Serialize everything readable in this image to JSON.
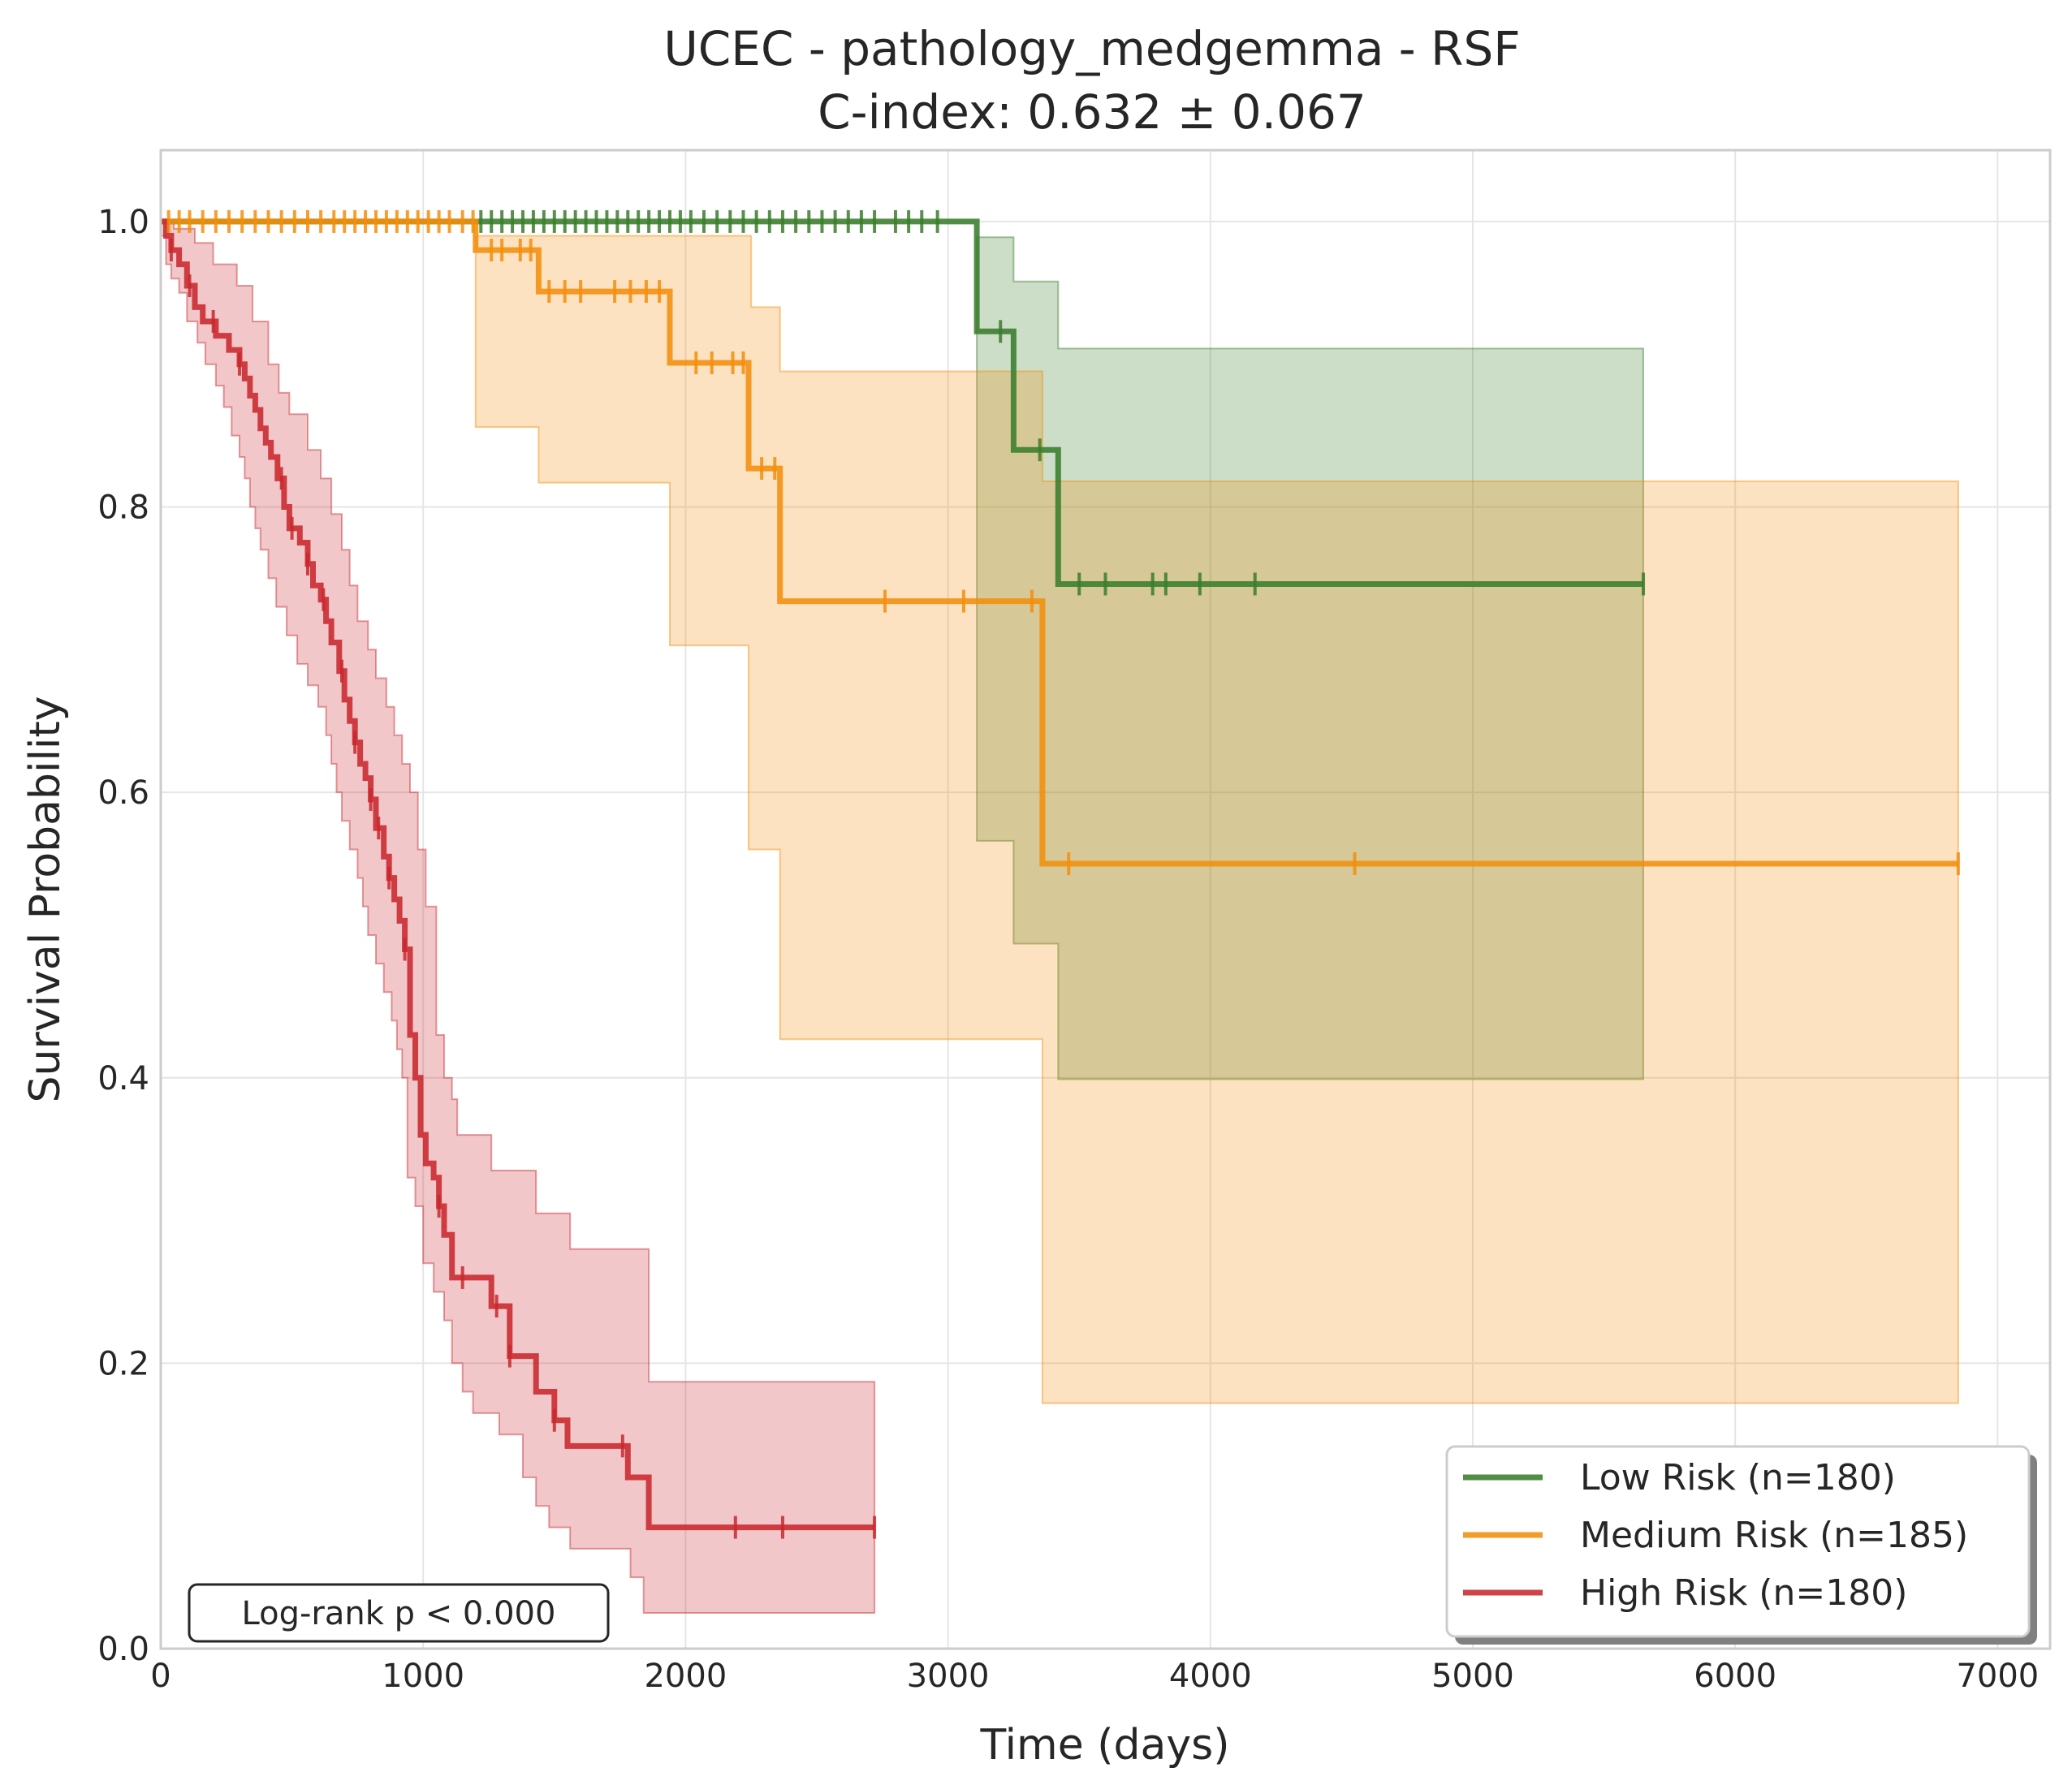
{
  "chart_data": {
    "type": "line",
    "subtype": "kaplan-meier",
    "title": "UCEC - pathology_medgemma - RSF",
    "subtitle": "C-index: 0.632 ± 0.067",
    "xlabel": "Time (days)",
    "ylabel": "Survival Probability",
    "xlim": [
      0,
      7200
    ],
    "ylim": [
      0.0,
      1.05
    ],
    "x_ticks": [
      0,
      1000,
      2000,
      3000,
      4000,
      5000,
      6000,
      7000
    ],
    "x_tick_labels": [
      "0",
      "1000",
      "2000",
      "3000",
      "4000",
      "5000",
      "6000",
      "7000"
    ],
    "y_ticks": [
      0.0,
      0.2,
      0.4,
      0.6,
      0.8,
      1.0
    ],
    "y_tick_labels": [
      "0.0",
      "0.2",
      "0.4",
      "0.6",
      "0.8",
      "1.0"
    ],
    "grid": true,
    "legend_position": "bottom-right",
    "annotation": "Log-rank p < 0.000",
    "series": [
      {
        "name": "Low Risk (n=180)",
        "color": "#3a7d2c",
        "steps": [
          [
            0,
            1.0
          ],
          [
            3110,
            0.923
          ],
          [
            3250,
            0.84
          ],
          [
            3420,
            0.746
          ],
          [
            5650,
            0.746
          ]
        ],
        "ci_upper": [
          [
            0,
            1.0
          ],
          [
            3110,
            0.989
          ],
          [
            3250,
            0.958
          ],
          [
            3420,
            0.911
          ],
          [
            5650,
            0.911
          ]
        ],
        "ci_lower": [
          [
            0,
            1.0
          ],
          [
            3110,
            0.566
          ],
          [
            3250,
            0.494
          ],
          [
            3420,
            0.399
          ],
          [
            5650,
            0.399
          ]
        ],
        "ci_start": 3110,
        "censor_times": [
          1220,
          1260,
          1300,
          1340,
          1380,
          1420,
          1460,
          1500,
          1540,
          1580,
          1620,
          1660,
          1700,
          1740,
          1780,
          1820,
          1860,
          1900,
          1940,
          1980,
          2020,
          2070,
          2120,
          2170,
          2220,
          2270,
          2320,
          2370,
          2420,
          2470,
          2520,
          2570,
          2620,
          2670,
          2720,
          2800,
          2850,
          2900,
          2960,
          3200,
          3350,
          3500,
          3600,
          3780,
          3830,
          3960,
          4170,
          5650
        ]
      },
      {
        "name": "Medium Risk (n=185)",
        "color": "#f28e0c",
        "steps": [
          [
            0,
            1.0
          ],
          [
            1200,
            0.98
          ],
          [
            1440,
            0.951
          ],
          [
            1940,
            0.901
          ],
          [
            2240,
            0.827
          ],
          [
            2360,
            0.734
          ],
          [
            3360,
            0.55
          ],
          [
            6850,
            0.55
          ]
        ],
        "ci_upper": [
          [
            0,
            1.0
          ],
          [
            1200,
            0.99
          ],
          [
            1940,
            0.99
          ],
          [
            2250,
            0.94
          ],
          [
            2360,
            0.895
          ],
          [
            3360,
            0.818
          ],
          [
            6850,
            0.818
          ]
        ],
        "ci_lower": [
          [
            0,
            1.0
          ],
          [
            1200,
            0.856
          ],
          [
            1440,
            0.817
          ],
          [
            1940,
            0.703
          ],
          [
            2240,
            0.56
          ],
          [
            2360,
            0.427
          ],
          [
            3360,
            0.172
          ],
          [
            6850,
            0.172
          ]
        ],
        "ci_start": 1200,
        "censor_times": [
          30,
          70,
          110,
          160,
          210,
          260,
          310,
          360,
          410,
          460,
          510,
          560,
          610,
          660,
          700,
          740,
          780,
          820,
          860,
          900,
          940,
          980,
          1020,
          1060,
          1100,
          1150,
          1190,
          1260,
          1300,
          1370,
          1410,
          1480,
          1540,
          1600,
          1730,
          1790,
          1850,
          1900,
          2040,
          2100,
          2180,
          2220,
          2290,
          2340,
          2760,
          3060,
          3320,
          3460,
          4550,
          6850
        ]
      },
      {
        "name": "High Risk (n=180)",
        "color": "#c8282d",
        "steps": [
          [
            0,
            1.0
          ],
          [
            20,
            0.99
          ],
          [
            40,
            0.98
          ],
          [
            70,
            0.97
          ],
          [
            100,
            0.955
          ],
          [
            130,
            0.94
          ],
          [
            160,
            0.93
          ],
          [
            210,
            0.92
          ],
          [
            260,
            0.91
          ],
          [
            300,
            0.9
          ],
          [
            320,
            0.89
          ],
          [
            340,
            0.878
          ],
          [
            360,
            0.868
          ],
          [
            380,
            0.855
          ],
          [
            400,
            0.845
          ],
          [
            420,
            0.835
          ],
          [
            445,
            0.82
          ],
          [
            470,
            0.8
          ],
          [
            490,
            0.785
          ],
          [
            530,
            0.775
          ],
          [
            560,
            0.76
          ],
          [
            580,
            0.745
          ],
          [
            610,
            0.735
          ],
          [
            630,
            0.72
          ],
          [
            650,
            0.705
          ],
          [
            680,
            0.685
          ],
          [
            700,
            0.665
          ],
          [
            720,
            0.65
          ],
          [
            740,
            0.635
          ],
          [
            760,
            0.62
          ],
          [
            780,
            0.61
          ],
          [
            800,
            0.595
          ],
          [
            820,
            0.575
          ],
          [
            850,
            0.555
          ],
          [
            870,
            0.54
          ],
          [
            890,
            0.525
          ],
          [
            910,
            0.51
          ],
          [
            930,
            0.49
          ],
          [
            950,
            0.43
          ],
          [
            970,
            0.4
          ],
          [
            990,
            0.36
          ],
          [
            1010,
            0.34
          ],
          [
            1040,
            0.33
          ],
          [
            1060,
            0.31
          ],
          [
            1080,
            0.29
          ],
          [
            1110,
            0.26
          ],
          [
            1260,
            0.24
          ],
          [
            1330,
            0.205
          ],
          [
            1430,
            0.18
          ],
          [
            1500,
            0.16
          ],
          [
            1550,
            0.142
          ],
          [
            1780,
            0.12
          ],
          [
            1860,
            0.085
          ],
          [
            2720,
            0.085
          ]
        ],
        "ci_upper": [
          [
            0,
            1.0
          ],
          [
            50,
            0.995
          ],
          [
            130,
            0.985
          ],
          [
            200,
            0.97
          ],
          [
            290,
            0.955
          ],
          [
            350,
            0.93
          ],
          [
            410,
            0.9
          ],
          [
            450,
            0.88
          ],
          [
            490,
            0.865
          ],
          [
            560,
            0.84
          ],
          [
            610,
            0.82
          ],
          [
            650,
            0.795
          ],
          [
            690,
            0.77
          ],
          [
            720,
            0.745
          ],
          [
            750,
            0.72
          ],
          [
            790,
            0.7
          ],
          [
            820,
            0.68
          ],
          [
            860,
            0.66
          ],
          [
            890,
            0.64
          ],
          [
            920,
            0.62
          ],
          [
            950,
            0.6
          ],
          [
            980,
            0.56
          ],
          [
            1010,
            0.52
          ],
          [
            1050,
            0.43
          ],
          [
            1080,
            0.4
          ],
          [
            1110,
            0.385
          ],
          [
            1130,
            0.36
          ],
          [
            1260,
            0.335
          ],
          [
            1430,
            0.305
          ],
          [
            1560,
            0.28
          ],
          [
            1860,
            0.187
          ],
          [
            2720,
            0.187
          ]
        ],
        "ci_lower": [
          [
            0,
            0.99
          ],
          [
            20,
            0.97
          ],
          [
            40,
            0.96
          ],
          [
            70,
            0.95
          ],
          [
            100,
            0.93
          ],
          [
            140,
            0.915
          ],
          [
            170,
            0.9
          ],
          [
            210,
            0.885
          ],
          [
            240,
            0.87
          ],
          [
            270,
            0.85
          ],
          [
            300,
            0.835
          ],
          [
            320,
            0.82
          ],
          [
            340,
            0.8
          ],
          [
            360,
            0.785
          ],
          [
            380,
            0.77
          ],
          [
            410,
            0.75
          ],
          [
            440,
            0.73
          ],
          [
            480,
            0.71
          ],
          [
            520,
            0.69
          ],
          [
            560,
            0.675
          ],
          [
            600,
            0.66
          ],
          [
            630,
            0.64
          ],
          [
            650,
            0.62
          ],
          [
            670,
            0.6
          ],
          [
            690,
            0.58
          ],
          [
            720,
            0.56
          ],
          [
            750,
            0.54
          ],
          [
            770,
            0.52
          ],
          [
            790,
            0.5
          ],
          [
            820,
            0.48
          ],
          [
            850,
            0.46
          ],
          [
            880,
            0.44
          ],
          [
            900,
            0.42
          ],
          [
            920,
            0.4
          ],
          [
            940,
            0.33
          ],
          [
            970,
            0.31
          ],
          [
            1000,
            0.27
          ],
          [
            1040,
            0.25
          ],
          [
            1080,
            0.23
          ],
          [
            1110,
            0.2
          ],
          [
            1150,
            0.18
          ],
          [
            1190,
            0.165
          ],
          [
            1290,
            0.15
          ],
          [
            1380,
            0.12
          ],
          [
            1430,
            0.1
          ],
          [
            1480,
            0.085
          ],
          [
            1560,
            0.07
          ],
          [
            1790,
            0.05
          ],
          [
            1840,
            0.025
          ],
          [
            2720,
            0.025
          ]
        ],
        "ci_start": 0,
        "censor_times": [
          40,
          110,
          200,
          300,
          460,
          500,
          560,
          620,
          690,
          740,
          800,
          830,
          870,
          930,
          1060,
          1150,
          1280,
          1330,
          1500,
          1760,
          2190,
          2370,
          2720
        ]
      }
    ]
  }
}
